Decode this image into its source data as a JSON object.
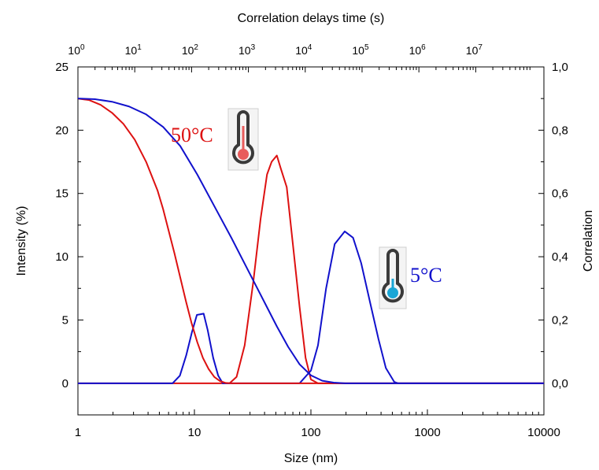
{
  "chart_data": {
    "type": "line",
    "xlabel": "Size (nm)",
    "ylabel": "Intensity (%)",
    "y2label": "Correlation",
    "x2label": "Correlation delays time (s)",
    "xscale": "log",
    "xlim": [
      1,
      10000
    ],
    "ylim": [
      -2.5,
      25
    ],
    "y2lim": [
      -0.1,
      1.0
    ],
    "x2lim_exponent": [
      0,
      8.2
    ],
    "x_ticks": [
      1,
      10,
      100,
      1000,
      10000
    ],
    "x_tick_labels": [
      "1",
      "10",
      "100",
      "1000",
      "10000"
    ],
    "y_ticks": [
      0,
      5,
      10,
      15,
      20,
      25
    ],
    "y_tick_labels": [
      "0",
      "5",
      "10",
      "15",
      "20",
      "25"
    ],
    "y2_ticks": [
      0.0,
      0.2,
      0.4,
      0.6,
      0.8,
      1.0
    ],
    "y2_tick_labels": [
      "0,0",
      "0,2",
      "0,4",
      "0,6",
      "0,8",
      "1,0"
    ],
    "x2_tick_exponents": [
      0,
      1,
      2,
      3,
      4,
      5,
      6,
      7
    ],
    "x2_tick_base": "10",
    "grid": false,
    "annotations": [
      {
        "text": "50°C",
        "color": "#dd1111",
        "icon": "thermometer-hot-icon"
      },
      {
        "text": "5°C",
        "color": "#1111cc",
        "icon": "thermometer-cold-icon"
      }
    ],
    "series": [
      {
        "axis": "left",
        "color": "#dd1111",
        "points": [
          [
            1,
            0
          ],
          [
            20,
            0
          ],
          [
            23,
            0.5
          ],
          [
            27,
            3
          ],
          [
            32,
            8
          ],
          [
            37,
            13
          ],
          [
            42,
            16.5
          ],
          [
            46,
            17.5
          ],
          [
            51,
            18
          ],
          [
            55,
            17
          ],
          [
            62,
            15.5
          ],
          [
            70,
            11
          ],
          [
            80,
            6
          ],
          [
            90,
            2
          ],
          [
            100,
            0.3
          ],
          [
            115,
            0
          ],
          [
            10000,
            0
          ]
        ]
      },
      {
        "axis": "left",
        "color": "#1111cc",
        "points": [
          [
            1,
            0
          ],
          [
            6.5,
            0
          ],
          [
            7.5,
            0.6
          ],
          [
            8.5,
            2.2
          ],
          [
            9.5,
            4
          ],
          [
            10.5,
            5.4
          ],
          [
            12,
            5.5
          ],
          [
            13,
            4.2
          ],
          [
            14.5,
            2
          ],
          [
            16,
            0.6
          ],
          [
            17.5,
            0
          ],
          [
            80,
            0
          ],
          [
            100,
            1
          ],
          [
            115,
            3
          ],
          [
            135,
            7.5
          ],
          [
            160,
            11
          ],
          [
            195,
            12
          ],
          [
            230,
            11.5
          ],
          [
            270,
            9.5
          ],
          [
            320,
            6.5
          ],
          [
            380,
            3.5
          ],
          [
            440,
            1.2
          ],
          [
            520,
            0.1
          ],
          [
            560,
            0
          ],
          [
            10000,
            0
          ]
        ]
      },
      {
        "axis": "right",
        "x_axis": "top",
        "color": "#dd1111",
        "points": [
          [
            0,
            0.9
          ],
          [
            0.2,
            0.895
          ],
          [
            0.4,
            0.88
          ],
          [
            0.6,
            0.855
          ],
          [
            0.8,
            0.82
          ],
          [
            1.0,
            0.77
          ],
          [
            1.2,
            0.7
          ],
          [
            1.4,
            0.61
          ],
          [
            1.5,
            0.55
          ],
          [
            1.6,
            0.48
          ],
          [
            1.7,
            0.41
          ],
          [
            1.8,
            0.335
          ],
          [
            1.9,
            0.26
          ],
          [
            2.0,
            0.19
          ],
          [
            2.1,
            0.13
          ],
          [
            2.2,
            0.08
          ],
          [
            2.3,
            0.045
          ],
          [
            2.4,
            0.02
          ],
          [
            2.5,
            0.007
          ],
          [
            2.6,
            0.001
          ],
          [
            2.7,
            0.0
          ],
          [
            8.2,
            0.0
          ]
        ]
      },
      {
        "axis": "right",
        "x_axis": "top",
        "color": "#1111cc",
        "points": [
          [
            0,
            0.9
          ],
          [
            0.3,
            0.898
          ],
          [
            0.6,
            0.89
          ],
          [
            0.9,
            0.875
          ],
          [
            1.2,
            0.85
          ],
          [
            1.5,
            0.81
          ],
          [
            1.8,
            0.75
          ],
          [
            2.1,
            0.66
          ],
          [
            2.4,
            0.56
          ],
          [
            2.7,
            0.46
          ],
          [
            3.0,
            0.355
          ],
          [
            3.3,
            0.25
          ],
          [
            3.5,
            0.18
          ],
          [
            3.7,
            0.115
          ],
          [
            3.9,
            0.06
          ],
          [
            4.1,
            0.025
          ],
          [
            4.3,
            0.008
          ],
          [
            4.5,
            0.002
          ],
          [
            4.7,
            0.0
          ],
          [
            8.2,
            0.0
          ]
        ]
      }
    ]
  }
}
